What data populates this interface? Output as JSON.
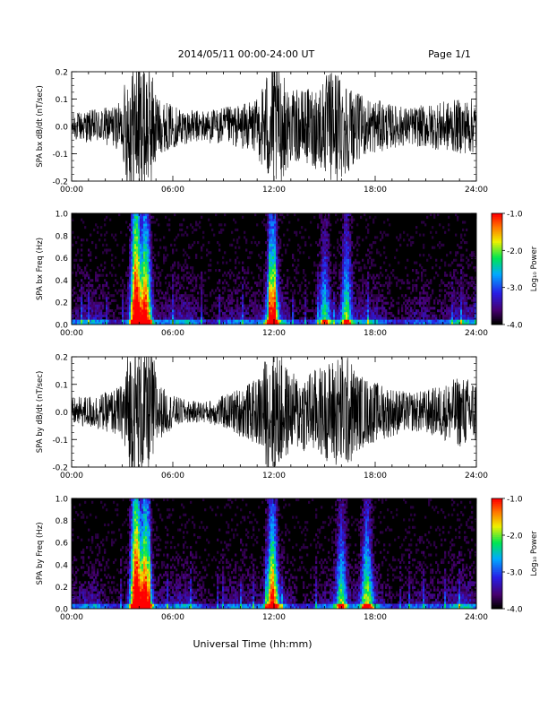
{
  "header": {
    "title": "2014/05/11  00:00-24:00 UT",
    "page": "Page 1/1"
  },
  "xlabel": "Universal Time (hh:mm)",
  "chart_data": [
    {
      "type": "line",
      "ylabel": "SPA bx dB/dt (nT/sec)",
      "xlim": [
        0,
        24
      ],
      "ylim": [
        -0.2,
        0.2
      ],
      "x_ticks": [
        "00:00",
        "06:00",
        "12:00",
        "18:00",
        "24:00"
      ],
      "y_ticks": [
        "-0.2",
        "-0.1",
        "0.0",
        "0.1",
        "0.2"
      ],
      "envelope": {
        "hours": [
          0,
          1,
          2,
          3,
          3.3,
          3.6,
          4,
          4.4,
          4.8,
          5.2,
          6,
          7,
          8,
          9,
          10,
          11,
          11.5,
          12,
          12.5,
          13,
          14,
          15,
          15.5,
          16,
          16.5,
          17,
          18,
          19,
          20,
          21,
          22,
          23,
          24
        ],
        "amplitude": [
          0.05,
          0.06,
          0.07,
          0.09,
          0.25,
          0.25,
          0.25,
          0.25,
          0.2,
          0.1,
          0.08,
          0.06,
          0.06,
          0.07,
          0.08,
          0.1,
          0.2,
          0.25,
          0.2,
          0.13,
          0.14,
          0.18,
          0.22,
          0.2,
          0.16,
          0.12,
          0.1,
          0.08,
          0.07,
          0.08,
          0.09,
          0.1,
          0.1
        ]
      }
    },
    {
      "type": "heatmap",
      "ylabel": "SPA bx Freq (Hz)",
      "xlim": [
        0,
        24
      ],
      "ylim": [
        0,
        1
      ],
      "x_ticks": [
        "00:00",
        "06:00",
        "12:00",
        "18:00",
        "24:00"
      ],
      "y_ticks": [
        "0.0",
        "0.2",
        "0.4",
        "0.6",
        "0.8",
        "1.0"
      ],
      "colorbar": {
        "label": "Log₁₀ Power",
        "range": [
          -4,
          -1
        ],
        "ticks": [
          "-1.0",
          "-2.0",
          "-3.0",
          "-4.0"
        ]
      },
      "bursts": [
        {
          "hour": 3.8,
          "strength": 1.0,
          "extent": 0.9
        },
        {
          "hour": 4.4,
          "strength": 0.8,
          "extent": 0.7
        },
        {
          "hour": 11.9,
          "strength": 0.8,
          "extent": 0.6
        },
        {
          "hour": 15.0,
          "strength": 0.45,
          "extent": 0.4
        },
        {
          "hour": 16.3,
          "strength": 0.55,
          "extent": 0.5
        }
      ]
    },
    {
      "type": "line",
      "ylabel": "SPA by dB/dt (nT/sec)",
      "xlim": [
        0,
        24
      ],
      "ylim": [
        -0.2,
        0.2
      ],
      "x_ticks": [
        "00:00",
        "06:00",
        "12:00",
        "18:00",
        "24:00"
      ],
      "y_ticks": [
        "-0.2",
        "-0.1",
        "0.0",
        "0.1",
        "0.2"
      ],
      "envelope": {
        "hours": [
          0,
          1,
          2,
          3,
          3.3,
          3.6,
          4,
          4.4,
          4.8,
          5.2,
          6,
          7,
          8,
          9,
          10,
          11,
          11.5,
          12,
          12.5,
          13,
          14,
          15,
          15.5,
          16,
          16.5,
          17,
          18,
          19,
          20,
          21,
          22,
          23,
          24
        ],
        "amplitude": [
          0.05,
          0.06,
          0.07,
          0.1,
          0.25,
          0.25,
          0.25,
          0.25,
          0.22,
          0.1,
          0.06,
          0.04,
          0.04,
          0.06,
          0.09,
          0.12,
          0.2,
          0.25,
          0.2,
          0.14,
          0.15,
          0.17,
          0.2,
          0.22,
          0.2,
          0.14,
          0.11,
          0.09,
          0.07,
          0.08,
          0.1,
          0.13,
          0.12
        ]
      }
    },
    {
      "type": "heatmap",
      "ylabel": "SPA by Freq (Hz)",
      "xlim": [
        0,
        24
      ],
      "ylim": [
        0,
        1
      ],
      "x_ticks": [
        "00:00",
        "06:00",
        "12:00",
        "18:00",
        "24:00"
      ],
      "y_ticks": [
        "0.0",
        "0.2",
        "0.4",
        "0.6",
        "0.8",
        "1.0"
      ],
      "colorbar": {
        "label": "Log₁₀ Power",
        "range": [
          -4,
          -1
        ],
        "ticks": [
          "-1.0",
          "-2.0",
          "-3.0",
          "-4.0"
        ]
      },
      "bursts": [
        {
          "hour": 3.8,
          "strength": 1.0,
          "extent": 0.9
        },
        {
          "hour": 4.4,
          "strength": 0.85,
          "extent": 0.7
        },
        {
          "hour": 11.9,
          "strength": 0.8,
          "extent": 0.6
        },
        {
          "hour": 16.0,
          "strength": 0.55,
          "extent": 0.5
        },
        {
          "hour": 17.5,
          "strength": 0.5,
          "extent": 0.55
        }
      ]
    }
  ]
}
